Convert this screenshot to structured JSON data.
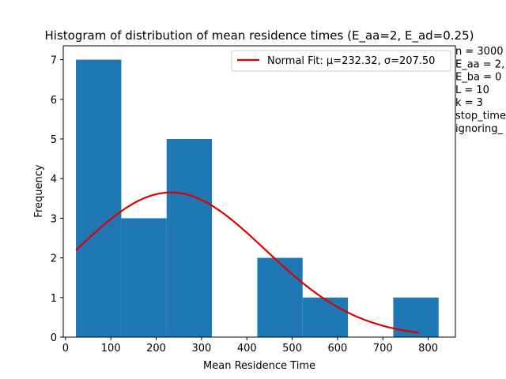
{
  "chart_data": {
    "type": "bar",
    "title": "Histogram of distribution of mean residence times (E_aa=2, E_ad=0.25)",
    "xlabel": "Mean Residence Time",
    "ylabel": "Frequency",
    "xlim": [
      -5,
      860
    ],
    "ylim": [
      0,
      7.35
    ],
    "xticks": [
      0,
      100,
      200,
      300,
      400,
      500,
      600,
      700,
      800
    ],
    "yticks": [
      0,
      1,
      2,
      3,
      4,
      5,
      6,
      7
    ],
    "bins": [
      {
        "x0": 23,
        "x1": 123,
        "count": 7
      },
      {
        "x0": 123,
        "x1": 223,
        "count": 3
      },
      {
        "x0": 223,
        "x1": 323,
        "count": 5
      },
      {
        "x0": 323,
        "x1": 423,
        "count": 0
      },
      {
        "x0": 423,
        "x1": 523,
        "count": 2
      },
      {
        "x0": 523,
        "x1": 623,
        "count": 1
      },
      {
        "x0": 623,
        "x1": 723,
        "count": 0
      },
      {
        "x0": 723,
        "x1": 823,
        "count": 1
      }
    ],
    "bar_color": "#1f77b4",
    "fit": {
      "name": "Normal Fit: μ=232.32, σ=207.50",
      "mu": 232.32,
      "sigma": 207.5,
      "x_range": [
        23,
        780
      ],
      "peak": 3.65,
      "color": "#e00000"
    },
    "legend_position": "top-right",
    "grid": false,
    "side_lines": [
      "n = 3000",
      "E_aa = 2,",
      "E_ba = 0",
      "L = 10",
      "k = 3",
      "stop_time",
      "ignoring_"
    ]
  }
}
